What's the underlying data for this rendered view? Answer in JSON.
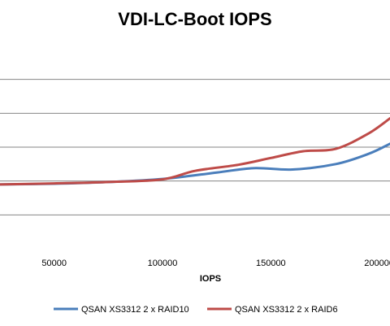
{
  "chart_data": {
    "type": "line",
    "title": "VDI-LC-Boot IOPS",
    "xlabel": "IOPS",
    "ylabel": "",
    "xlim": [
      25000,
      205000
    ],
    "ylim": [
      0,
      6
    ],
    "xticks": [
      50000,
      100000,
      150000,
      200000
    ],
    "xtick_labels": [
      "50000",
      "100000",
      "150000",
      "200000"
    ],
    "yticks": [
      1,
      2,
      3,
      4,
      5
    ],
    "grid": true,
    "legend": "bottom",
    "series": [
      {
        "name": "QSAN XS3312 2 x RAID10",
        "color": "#4a7ebb",
        "x": [
          25000,
          50000,
          75000,
          100000,
          125000,
          142000,
          160000,
          180000,
          195000,
          205000
        ],
        "y": [
          1.9,
          1.92,
          1.97,
          2.06,
          2.25,
          2.38,
          2.34,
          2.5,
          2.8,
          3.1
        ]
      },
      {
        "name": "QSAN XS3312 2 x RAID6",
        "color": "#be4b48",
        "x": [
          25000,
          50000,
          75000,
          100000,
          115000,
          135000,
          150000,
          165000,
          180000,
          195000,
          205000
        ],
        "y": [
          1.9,
          1.93,
          1.97,
          2.05,
          2.3,
          2.48,
          2.68,
          2.88,
          2.95,
          3.4,
          3.85
        ]
      }
    ]
  }
}
